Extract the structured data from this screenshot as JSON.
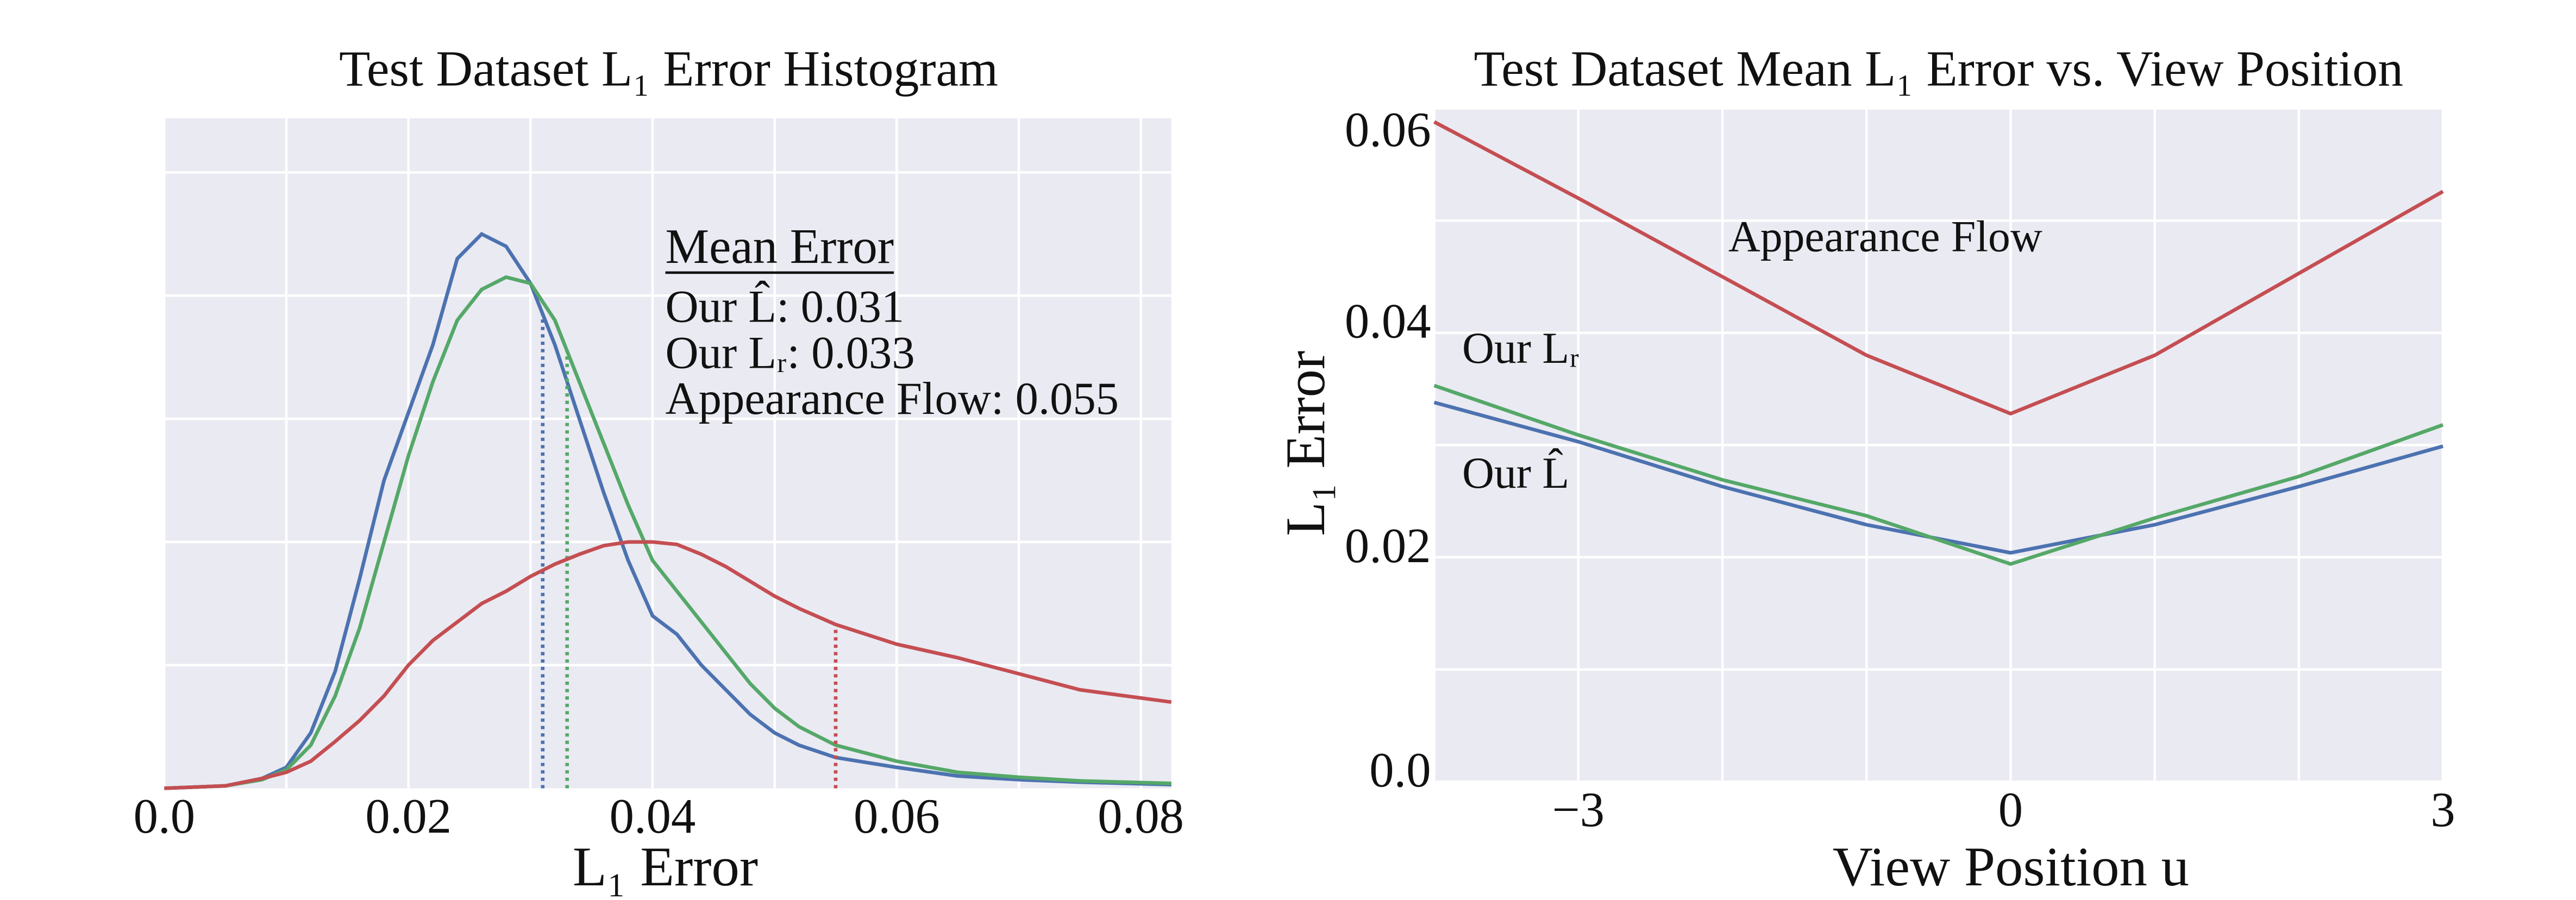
{
  "chart_data": [
    {
      "type": "line",
      "title": "Test Dataset L₁ Error Histogram",
      "xlabel": "L₁ Error",
      "xlim": [
        0,
        0.0825
      ],
      "xticks": [
        {
          "value": 0,
          "label": "0.0"
        },
        0.02,
        0.04,
        0.06,
        0.08
      ],
      "minor_xticks": [
        0.01,
        0.03,
        0.05,
        0.07
      ],
      "ylim": [
        0,
        5.44
      ],
      "yticks": [
        1,
        2,
        3,
        4,
        5
      ],
      "show_ytick_labels": false,
      "grid": true,
      "legend_title": "Mean Error",
      "x": [
        0,
        0.005,
        0.008,
        0.01,
        0.012,
        0.014,
        0.016,
        0.018,
        0.02,
        0.022,
        0.024,
        0.026,
        0.028,
        0.03,
        0.032,
        0.034,
        0.036,
        0.038,
        0.04,
        0.042,
        0.044,
        0.046,
        0.048,
        0.05,
        0.052,
        0.055,
        0.06,
        0.065,
        0.07,
        0.075,
        0.0825
      ],
      "series": [
        {
          "name": "Our L̂",
          "color": "#4c72b0",
          "mean": 0.031,
          "mean_label": "Our L̂: 0.031",
          "values": [
            0,
            0.02,
            0.08,
            0.17,
            0.45,
            0.95,
            1.7,
            2.5,
            3.05,
            3.6,
            4.3,
            4.5,
            4.4,
            4.1,
            3.6,
            3.0,
            2.4,
            1.85,
            1.4,
            1.25,
            1.0,
            0.8,
            0.6,
            0.45,
            0.35,
            0.25,
            0.17,
            0.1,
            0.07,
            0.05,
            0.03
          ]
        },
        {
          "name": "Our Lᵣ",
          "color": "#55a868",
          "mean": 0.033,
          "mean_label": "Our Lᵣ: 0.033",
          "values": [
            0,
            0.02,
            0.07,
            0.15,
            0.35,
            0.75,
            1.3,
            2.0,
            2.7,
            3.3,
            3.8,
            4.05,
            4.15,
            4.1,
            3.8,
            3.3,
            2.8,
            2.3,
            1.85,
            1.6,
            1.35,
            1.1,
            0.85,
            0.65,
            0.5,
            0.35,
            0.22,
            0.13,
            0.09,
            0.06,
            0.04
          ]
        },
        {
          "name": "Appearance Flow",
          "color": "#c44e52",
          "mean": 0.055,
          "mean_label": "Appearance Flow: 0.055",
          "values": [
            0,
            0.02,
            0.08,
            0.13,
            0.22,
            0.38,
            0.55,
            0.75,
            1.0,
            1.2,
            1.35,
            1.5,
            1.6,
            1.72,
            1.82,
            1.9,
            1.97,
            2.0,
            2.0,
            1.98,
            1.9,
            1.8,
            1.68,
            1.56,
            1.46,
            1.33,
            1.17,
            1.06,
            0.93,
            0.8,
            0.7
          ]
        }
      ]
    },
    {
      "type": "line",
      "title": "Test Dataset Mean L₁ Error vs. View Position",
      "xlabel": "View Position u",
      "ylabel": "L₁ Error",
      "xlim": [
        -4,
        3
      ],
      "xticks": [
        {
          "value": -3,
          "label": "−3"
        },
        0,
        3
      ],
      "minor_xticks": [
        -4,
        -2,
        -1,
        1,
        2
      ],
      "ylim": [
        0,
        0.06
      ],
      "yticks": [
        {
          "value": 0,
          "label": "0.0"
        },
        0.02,
        0.04,
        0.06
      ],
      "minor_yticks": [
        0.01,
        0.03,
        0.05
      ],
      "show_ytick_labels": true,
      "grid": true,
      "x": [
        -4,
        -3,
        -2,
        -1,
        0,
        1,
        2,
        3
      ],
      "series": [
        {
          "name": "Our L̂",
          "color": "#4c72b0",
          "values": [
            0.0338,
            0.0303,
            0.0263,
            0.0229,
            0.0204,
            0.0229,
            0.0263,
            0.0299
          ]
        },
        {
          "name": "Our Lᵣ",
          "color": "#55a868",
          "values": [
            0.0353,
            0.0309,
            0.0269,
            0.0237,
            0.0194,
            0.0235,
            0.0272,
            0.0318
          ]
        },
        {
          "name": "Appearance Flow",
          "color": "#c44e52",
          "values": [
            0.0588,
            0.052,
            0.045,
            0.038,
            0.0328,
            0.038,
            0.0453,
            0.0526
          ]
        }
      ]
    }
  ]
}
